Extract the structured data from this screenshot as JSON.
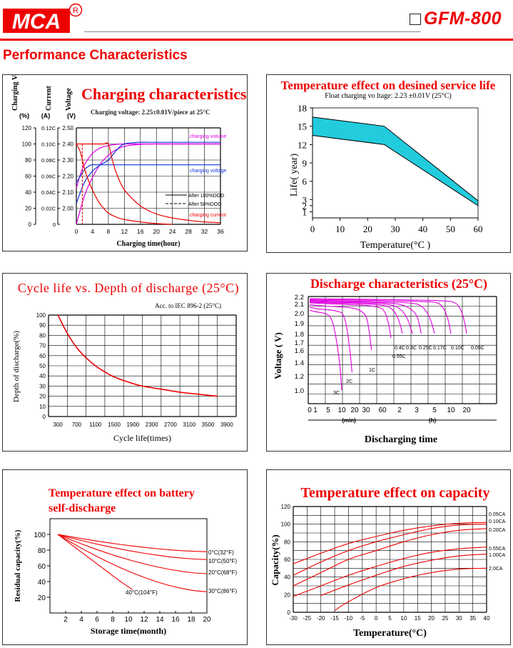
{
  "header": {
    "brand": "MCA",
    "registered": "R",
    "model": "GFM-800",
    "section_title": "Performance Characteristics"
  },
  "colors": {
    "accent_red": "#ee0000",
    "magenta": "#e000e0",
    "blue": "#1133dd",
    "cyan_fill": "#22ccdd"
  },
  "chart_data": [
    {
      "id": "charging",
      "type": "line",
      "title": "Charging characteristics",
      "subtitle": "Charging voltage:  2.25±0.01V/piece at 25°C",
      "axis_titles": [
        "Charging Volume",
        "Current",
        "Voltage"
      ],
      "axis_units": [
        "(%)",
        "(A)",
        "(V)"
      ],
      "xlabel": "Charging time(hour)",
      "x_ticks": [
        0,
        4,
        8,
        12,
        16,
        20,
        24,
        28,
        32,
        36
      ],
      "xlim": [
        0,
        36
      ],
      "volume_ticks": [
        "0",
        "20",
        "40",
        "60",
        "80",
        "100",
        "120"
      ],
      "current_ticks": [
        "0",
        "0.02C",
        "0.04C",
        "0.06C",
        "0.08C",
        "0.10C",
        "0.12C"
      ],
      "voltage_ticks": [
        "2.00",
        "2.10",
        "2.20",
        "2.30",
        "2.40",
        "2.50"
      ],
      "legend": [
        "After 100%DOD",
        "After 50%DOD"
      ],
      "labels": [
        "charging volume",
        "charging voltage",
        "charging current"
      ],
      "series": [
        {
          "name": "charging volume",
          "axis": "volume",
          "dod": "100%",
          "x": [
            0,
            2,
            4,
            6,
            8,
            10,
            12,
            16,
            20,
            24,
            36
          ],
          "y": [
            0,
            35,
            58,
            75,
            86,
            93,
            97,
            99.5,
            100,
            100,
            100
          ]
        },
        {
          "name": "charging volume",
          "axis": "volume",
          "dod": "50%",
          "x": [
            0,
            1,
            2,
            4,
            6,
            8,
            10,
            12,
            16,
            36
          ],
          "y": [
            45,
            62,
            74,
            88,
            95,
            98,
            99.5,
            100,
            100,
            100
          ]
        },
        {
          "name": "charging voltage",
          "axis": "voltage",
          "dod": "100%",
          "x": [
            0,
            2,
            4,
            6,
            8,
            10,
            12,
            16,
            20,
            36
          ],
          "y": [
            2.03,
            2.16,
            2.23,
            2.27,
            2.3,
            2.36,
            2.4,
            2.41,
            2.41,
            2.41
          ]
        },
        {
          "name": "charging voltage",
          "axis": "voltage",
          "dod": "50%",
          "x": [
            0,
            1,
            2,
            3,
            4,
            8,
            36
          ],
          "y": [
            2.16,
            2.2,
            2.24,
            2.26,
            2.27,
            2.27,
            2.27
          ]
        },
        {
          "name": "charging current",
          "axis": "current",
          "dod": "100%",
          "x": [
            0,
            2,
            4,
            6,
            7,
            8,
            9,
            10,
            12,
            16,
            20,
            24,
            28,
            32,
            36
          ],
          "y": [
            0.1,
            0.1,
            0.1,
            0.1,
            0.1,
            0.1,
            0.08,
            0.064,
            0.043,
            0.023,
            0.013,
            0.008,
            0.005,
            0.003,
            0.002
          ]
        },
        {
          "name": "charging current",
          "axis": "current",
          "dod": "50%",
          "x": [
            0,
            1,
            2,
            3,
            4,
            5,
            6,
            7,
            8,
            10,
            12,
            16,
            20,
            24
          ],
          "y": [
            0.1,
            0.09,
            0.07,
            0.055,
            0.043,
            0.033,
            0.025,
            0.019,
            0.014,
            0.009,
            0.006,
            0.003,
            0.001,
            0.0
          ]
        }
      ]
    },
    {
      "id": "temp_life",
      "type": "area",
      "title": "Temperature effect on desined service life",
      "subtitle": "Float charging vo  ltage:  2.23 ±0.01V   (25°C)",
      "xlabel": "Temperature(°C )",
      "ylabel": "Life( year)",
      "x_ticks": [
        0,
        10,
        20,
        30,
        40,
        50,
        60
      ],
      "y_ticks": [
        1,
        2,
        3,
        6,
        9,
        12,
        15,
        18
      ],
      "xlim": [
        0,
        60
      ],
      "ylim": [
        0,
        18
      ],
      "series": [
        {
          "name": "upper",
          "x": [
            0,
            26,
            60
          ],
          "y": [
            16.5,
            15,
            2.8
          ]
        },
        {
          "name": "lower",
          "x": [
            0,
            26,
            60
          ],
          "y": [
            13.5,
            12,
            2.0
          ]
        }
      ]
    },
    {
      "id": "cycle_life",
      "type": "line",
      "title": "Cycle life vs. Depth of discharge (25°C)",
      "subtitle": "Acc. to IEC 896-2 (25°C)",
      "xlabel": "Cycle life(times)",
      "ylabel": "Depth of discharge(%)",
      "x_ticks": [
        300,
        700,
        1100,
        1500,
        1900,
        2300,
        2700,
        3100,
        3500,
        3900
      ],
      "y_ticks": [
        0,
        10,
        20,
        30,
        40,
        50,
        60,
        70,
        80,
        90,
        100
      ],
      "xlim": [
        100,
        4100
      ],
      "ylim": [
        0,
        100
      ],
      "series": [
        {
          "name": "",
          "x": [
            300,
            500,
            700,
            900,
            1100,
            1300,
            1500,
            1800,
            2100,
            2500,
            2900,
            3300,
            3700
          ],
          "y": [
            100,
            82,
            68,
            58,
            50,
            44,
            39,
            34,
            30,
            27,
            24,
            22,
            20
          ]
        }
      ]
    },
    {
      "id": "discharge",
      "type": "line",
      "title": "Discharge characteristics (25°C)",
      "xlabel": "Discharging time",
      "ylabel": "Voltage ( V)",
      "x_ticks": [
        "0",
        "1",
        "5",
        "10",
        "20",
        "30",
        "60",
        "2",
        "3",
        "5",
        "10",
        "20"
      ],
      "x_units": [
        "(min)",
        "(h)"
      ],
      "y_ticks": [
        "1.0",
        "1.2",
        "1.4",
        "1.6",
        "1.7",
        "1.8",
        "1.9",
        "2.0",
        "2.1",
        "2.2"
      ],
      "ylim": [
        0.9,
        2.2
      ],
      "curve_labels": [
        "3C",
        "2C",
        "1C",
        "0.55C",
        "0.4C",
        "0.3C",
        "0.25C",
        "0.17C",
        "0.10C",
        "0.05C"
      ],
      "series": [
        {
          "name": "3C",
          "end_minutes": 10,
          "v_start": 2.03,
          "v_end": 1.0
        },
        {
          "name": "2C",
          "end_minutes": 18,
          "v_start": 2.06,
          "v_end": 1.25
        },
        {
          "name": "1C",
          "end_minutes": 40,
          "v_start": 2.09,
          "v_end": 1.6
        },
        {
          "name": "0.55C",
          "end_minutes": 90,
          "v_start": 2.11,
          "v_end": 1.75
        },
        {
          "name": "0.4C",
          "end_minutes": 130,
          "v_start": 2.12,
          "v_end": 1.8
        },
        {
          "name": "0.3C",
          "end_minutes": 165,
          "v_start": 2.13,
          "v_end": 1.8
        },
        {
          "name": "0.25C",
          "end_minutes": 210,
          "v_start": 2.14,
          "v_end": 1.8
        },
        {
          "name": "0.17C",
          "end_minutes": 300,
          "v_start": 2.15,
          "v_end": 1.8
        },
        {
          "name": "0.10C",
          "end_minutes": 600,
          "v_start": 2.16,
          "v_end": 1.8
        },
        {
          "name": "0.05C",
          "end_minutes": 1200,
          "v_start": 2.17,
          "v_end": 1.8
        }
      ]
    },
    {
      "id": "self_discharge",
      "type": "line",
      "title": "Temperature effect on battery self-discharge",
      "xlabel": "Storage time(month)",
      "ylabel": "Residual capacity(%)",
      "x_ticks": [
        2,
        4,
        6,
        8,
        10,
        12,
        14,
        16,
        18,
        20
      ],
      "y_ticks": [
        20,
        40,
        60,
        80,
        100
      ],
      "xlim": [
        0,
        20
      ],
      "ylim": [
        0,
        120
      ],
      "series": [
        {
          "name": "0°C(32°F)",
          "x": [
            1,
            20
          ],
          "y": [
            100,
            78
          ]
        },
        {
          "name": "10°C(50°F)",
          "x": [
            1,
            20
          ],
          "y": [
            100,
            68
          ]
        },
        {
          "name": "20°C(68°F)",
          "x": [
            1,
            20
          ],
          "y": [
            100,
            50
          ]
        },
        {
          "name": "30°C(86°F)",
          "x": [
            1,
            20
          ],
          "y": [
            100,
            27
          ]
        },
        {
          "name": "40°C(104°F)",
          "x": [
            1,
            3,
            5,
            7,
            9,
            10.5
          ],
          "y": [
            100,
            85,
            70,
            55,
            40,
            30
          ]
        }
      ]
    },
    {
      "id": "temp_capacity",
      "type": "line",
      "title": "Temperature effect on capacity",
      "xlabel": "Temperature(°C)",
      "ylabel": "Capacity(%)",
      "x_ticks": [
        -30,
        -25,
        -20,
        -15,
        -10,
        -5,
        0,
        5,
        10,
        15,
        20,
        25,
        30,
        35,
        40
      ],
      "y_ticks": [
        0,
        20,
        40,
        60,
        80,
        100,
        120
      ],
      "xlim": [
        -30,
        40
      ],
      "ylim": [
        0,
        120
      ],
      "series": [
        {
          "name": "0.05CA",
          "x": [
            -30,
            -20,
            -10,
            0,
            10,
            20,
            30,
            40
          ],
          "y": [
            55,
            67,
            78,
            86,
            93,
            98,
            101,
            102
          ]
        },
        {
          "name": "0.10CA",
          "x": [
            -30,
            -20,
            -10,
            0,
            10,
            20,
            30,
            40
          ],
          "y": [
            42,
            57,
            70,
            80,
            88,
            95,
            99,
            100
          ]
        },
        {
          "name": "0.20CA",
          "x": [
            -30,
            -20,
            -10,
            0,
            10,
            20,
            30,
            40
          ],
          "y": [
            30,
            45,
            60,
            70,
            80,
            88,
            93,
            95
          ]
        },
        {
          "name": "0.55CA",
          "x": [
            -30,
            -20,
            -10,
            0,
            10,
            20,
            30,
            40
          ],
          "y": [
            18,
            30,
            42,
            52,
            61,
            68,
            72,
            74
          ]
        },
        {
          "name": "1.00CA",
          "x": [
            -20,
            -10,
            0,
            10,
            20,
            30,
            40
          ],
          "y": [
            19,
            31,
            42,
            52,
            59,
            64,
            66
          ]
        },
        {
          "name": "2.0CA",
          "x": [
            -15,
            -10,
            0,
            10,
            20,
            30,
            40
          ],
          "y": [
            2,
            12,
            28,
            38,
            45,
            49,
            50
          ]
        }
      ]
    }
  ]
}
